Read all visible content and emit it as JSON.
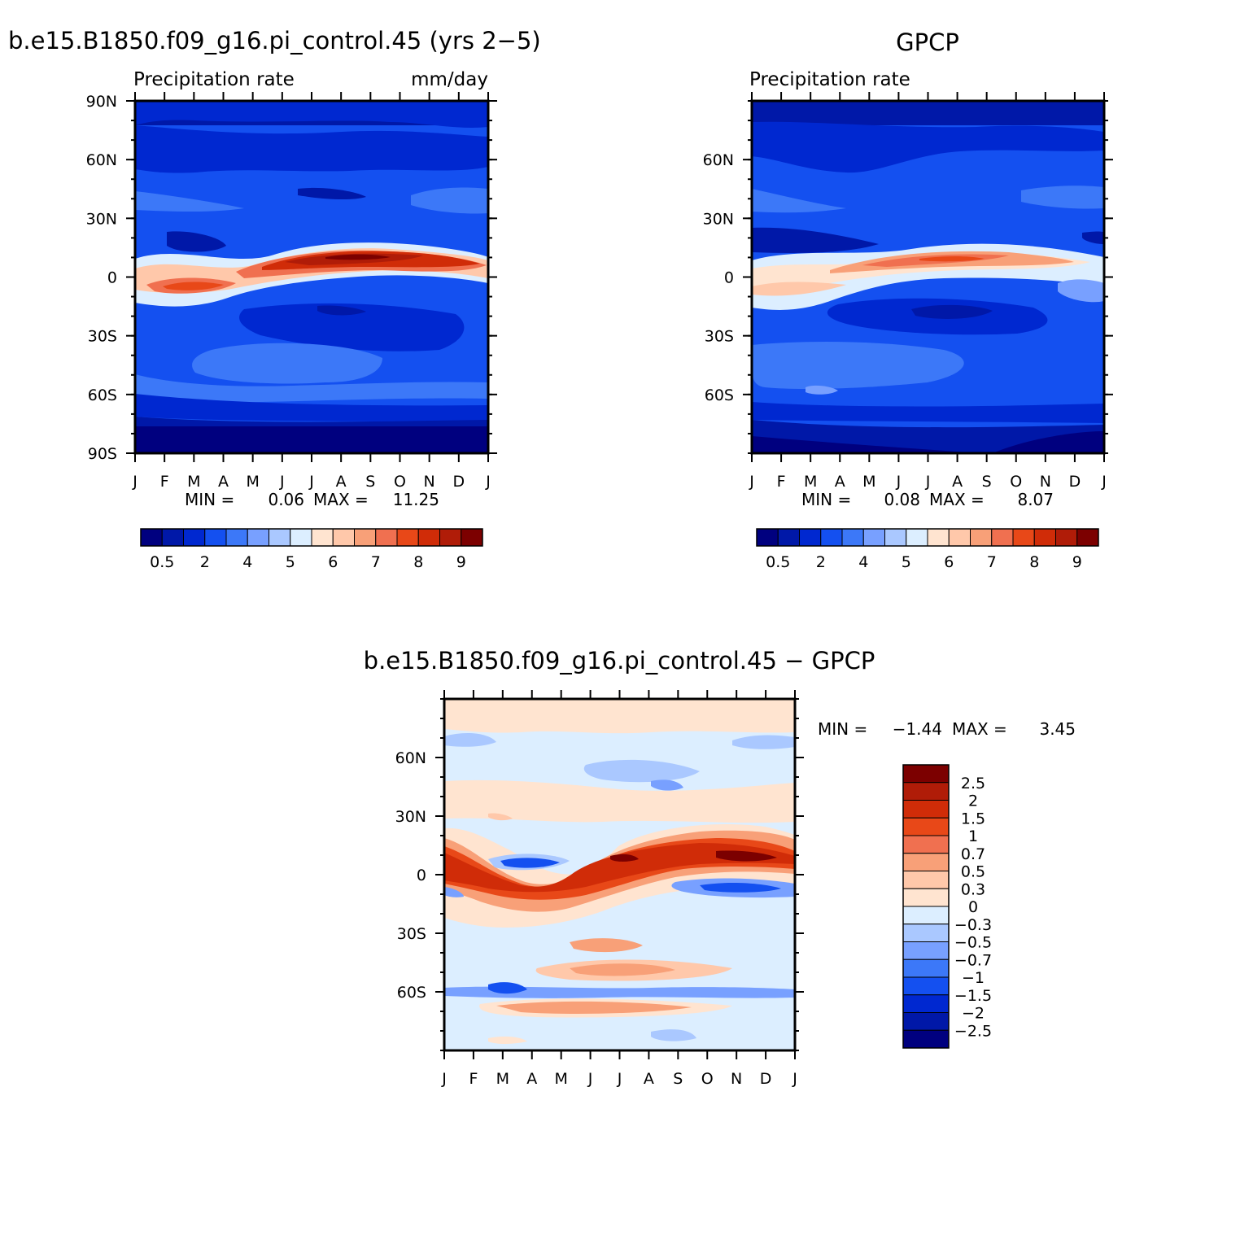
{
  "figure": {
    "months": [
      "J",
      "F",
      "M",
      "A",
      "M",
      "J",
      "J",
      "A",
      "S",
      "O",
      "N",
      "D",
      "J"
    ]
  },
  "chart_data": [
    {
      "type": "heatmap",
      "title": "b.e15.B1850.f09_g16.pi_control.45 (yrs 2−5)",
      "left_label": "Precipitation rate",
      "right_label": "mm/day",
      "xlabel": "",
      "ylabel": "",
      "x_ticks": [
        "J",
        "F",
        "M",
        "A",
        "M",
        "J",
        "J",
        "A",
        "S",
        "O",
        "N",
        "D",
        "J"
      ],
      "y_ticks": [
        "90N",
        "60N",
        "30N",
        "0",
        "30S",
        "60S",
        "90S"
      ],
      "ylim": [
        -90,
        90
      ],
      "stats": {
        "min_label": "MIN =",
        "min": "0.06",
        "max_label": "MAX =",
        "max": "11.25"
      },
      "colorbar": {
        "labels": [
          "0.5",
          "2",
          "4",
          "5",
          "6",
          "7",
          "8",
          "9"
        ],
        "colors": [
          "#00007f",
          "#0018a8",
          "#0028d0",
          "#1450f0",
          "#3c78f8",
          "#78a0ff",
          "#aac8ff",
          "#dceeff",
          "#ffe4d0",
          "#ffc8aa",
          "#f8a078",
          "#f07050",
          "#e84818",
          "#d02c08",
          "#b01c08",
          "#7c0000"
        ]
      }
    },
    {
      "type": "heatmap",
      "title": "GPCP",
      "left_label": "Precipitation rate",
      "xlabel": "",
      "ylabel": "",
      "x_ticks": [
        "J",
        "F",
        "M",
        "A",
        "M",
        "J",
        "J",
        "A",
        "S",
        "O",
        "N",
        "D",
        "J"
      ],
      "y_ticks": [
        "60N",
        "30N",
        "0",
        "30S",
        "60S"
      ],
      "ylim": [
        -90,
        90
      ],
      "stats": {
        "min_label": "MIN =",
        "min": "0.08",
        "max_label": "MAX =",
        "max": "8.07"
      },
      "colorbar": {
        "labels": [
          "0.5",
          "2",
          "4",
          "5",
          "6",
          "7",
          "8",
          "9"
        ],
        "colors": [
          "#00007f",
          "#0018a8",
          "#0028d0",
          "#1450f0",
          "#3c78f8",
          "#78a0ff",
          "#aac8ff",
          "#dceeff",
          "#ffe4d0",
          "#ffc8aa",
          "#f8a078",
          "#f07050",
          "#e84818",
          "#d02c08",
          "#b01c08",
          "#7c0000"
        ]
      }
    },
    {
      "type": "heatmap",
      "title": "b.e15.B1850.f09_g16.pi_control.45 − GPCP",
      "xlabel": "",
      "ylabel": "",
      "x_ticks": [
        "J",
        "F",
        "M",
        "A",
        "M",
        "J",
        "J",
        "A",
        "S",
        "O",
        "N",
        "D",
        "J"
      ],
      "y_ticks": [
        "60N",
        "30N",
        "0",
        "30S",
        "60S"
      ],
      "ylim": [
        -90,
        90
      ],
      "stats": {
        "min_label": "MIN =",
        "min": "−1.44",
        "max_label": "MAX =",
        "max": "3.45"
      },
      "colorbar": {
        "labels": [
          "2.5",
          "2",
          "1.5",
          "1",
          "0.7",
          "0.5",
          "0.3",
          "0",
          "−0.3",
          "−0.5",
          "−0.7",
          "−1",
          "−1.5",
          "−2",
          "−2.5"
        ],
        "colors": [
          "#7c0000",
          "#b01c08",
          "#d02c08",
          "#e84818",
          "#f07050",
          "#f8a078",
          "#ffc8aa",
          "#ffe4d0",
          "#dceeff",
          "#aac8ff",
          "#78a0ff",
          "#3c78f8",
          "#1450f0",
          "#0028d0",
          "#0018a8",
          "#00007f"
        ]
      }
    }
  ]
}
